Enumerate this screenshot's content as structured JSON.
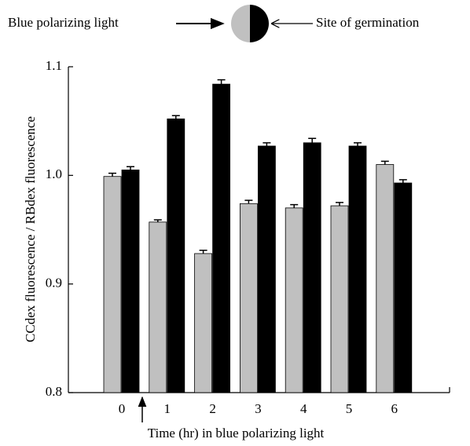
{
  "chart_data": {
    "type": "bar",
    "annotations": {
      "left": "Blue polarizing light",
      "right": "Site of germination"
    },
    "xlabel": "Time (hr) in blue polarizing light",
    "ylabel": "CCdex fluorescence / RBdex fluorescence",
    "categories": [
      "0",
      "1",
      "2",
      "3",
      "4",
      "5",
      "6"
    ],
    "series": [
      {
        "color": "#c0c0c0",
        "values": [
          0.999,
          0.957,
          0.928,
          0.974,
          0.97,
          0.972,
          1.01
        ],
        "errors": [
          0.003,
          0.002,
          0.003,
          0.003,
          0.003,
          0.003,
          0.003
        ]
      },
      {
        "color": "#000000",
        "values": [
          1.005,
          1.052,
          1.084,
          1.027,
          1.03,
          1.027,
          0.993
        ],
        "errors": [
          0.003,
          0.003,
          0.004,
          0.003,
          0.004,
          0.003,
          0.003
        ]
      }
    ],
    "ylim": [
      0.8,
      1.1
    ],
    "yticks": [
      0.8,
      0.9,
      {
        "value": 1,
        "label": "1.0"
      },
      1.1
    ]
  }
}
